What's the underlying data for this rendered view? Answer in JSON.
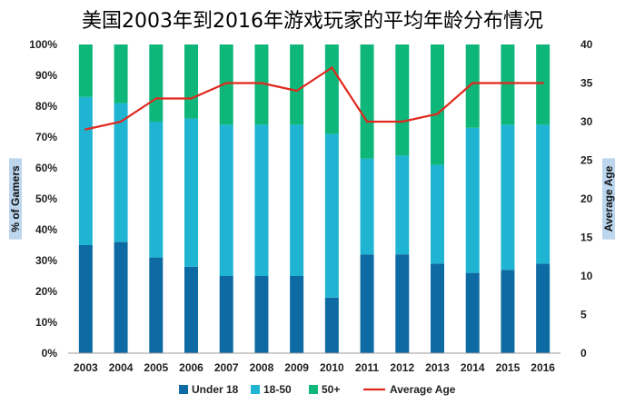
{
  "chart_data": {
    "type": "bar",
    "stacked": true,
    "title": "美国2003年到2016年游戏玩家的平均年龄分布情况",
    "categories": [
      "2003",
      "2004",
      "2005",
      "2006",
      "2007",
      "2008",
      "2009",
      "2010",
      "2011",
      "2012",
      "2013",
      "2014",
      "2015",
      "2016"
    ],
    "series": [
      {
        "name": "Under 18",
        "color": "#0e6aa3",
        "axis": "left",
        "values": [
          35,
          36,
          31,
          28,
          25,
          25,
          25,
          18,
          32,
          32,
          29,
          26,
          27,
          29
        ]
      },
      {
        "name": "18-50",
        "color": "#1fb5d2",
        "axis": "left",
        "values": [
          48,
          45,
          44,
          48,
          49,
          49,
          49,
          53,
          31,
          32,
          32,
          47,
          47,
          45
        ]
      },
      {
        "name": "50+",
        "color": "#0fb67a",
        "axis": "left",
        "values": [
          17,
          19,
          25,
          24,
          26,
          26,
          26,
          29,
          37,
          36,
          39,
          27,
          26,
          26
        ]
      },
      {
        "name": "Average Age",
        "type": "line",
        "color": "#e0281e",
        "axis": "right",
        "values": [
          29,
          30,
          33,
          33,
          35,
          35,
          34,
          37,
          30,
          30,
          31,
          35,
          35,
          35
        ]
      }
    ],
    "ylabel": "% of Gamers",
    "y2label": "Average Age",
    "ylim": [
      0,
      100
    ],
    "y2lim": [
      0,
      40
    ],
    "yticks": [
      "0%",
      "10%",
      "20%",
      "30%",
      "40%",
      "50%",
      "60%",
      "70%",
      "80%",
      "90%",
      "100%"
    ],
    "y2ticks": [
      "0",
      "5",
      "10",
      "15",
      "20",
      "25",
      "30",
      "35",
      "40"
    ],
    "legend_position": "bottom",
    "grid": false
  }
}
